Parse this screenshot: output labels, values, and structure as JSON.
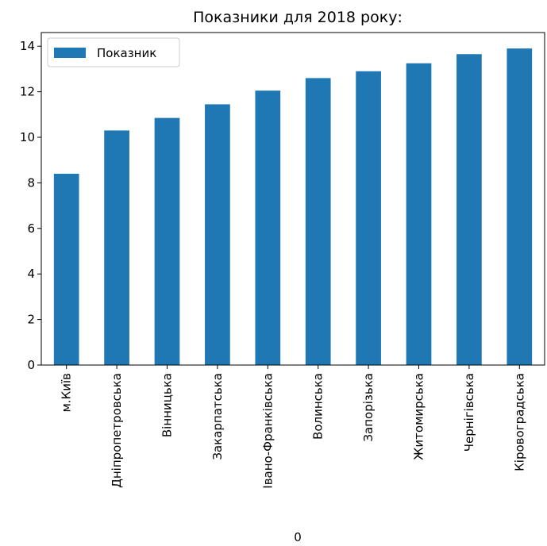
{
  "chart_data": {
    "type": "bar",
    "title": "Показники для 2018 року:",
    "xlabel": "0",
    "ylabel": "",
    "categories": [
      "м.Київ",
      "Дніпропетровська",
      "Вінницька",
      "Закарпатська",
      "Івано-Франківська",
      "Волинська",
      "Запорізька",
      "Житомирська",
      "Чернігівська",
      "Кіровоградська"
    ],
    "series": [
      {
        "name": "Показник",
        "values": [
          8.4,
          10.3,
          10.85,
          11.45,
          12.05,
          12.6,
          12.9,
          13.25,
          13.65,
          13.9
        ]
      }
    ],
    "ylim": [
      0,
      14.6
    ],
    "yticks": [
      0,
      2,
      4,
      6,
      8,
      10,
      12,
      14
    ],
    "grid": false,
    "legend_position": "top-left",
    "bar_color": "#1f77b4"
  }
}
